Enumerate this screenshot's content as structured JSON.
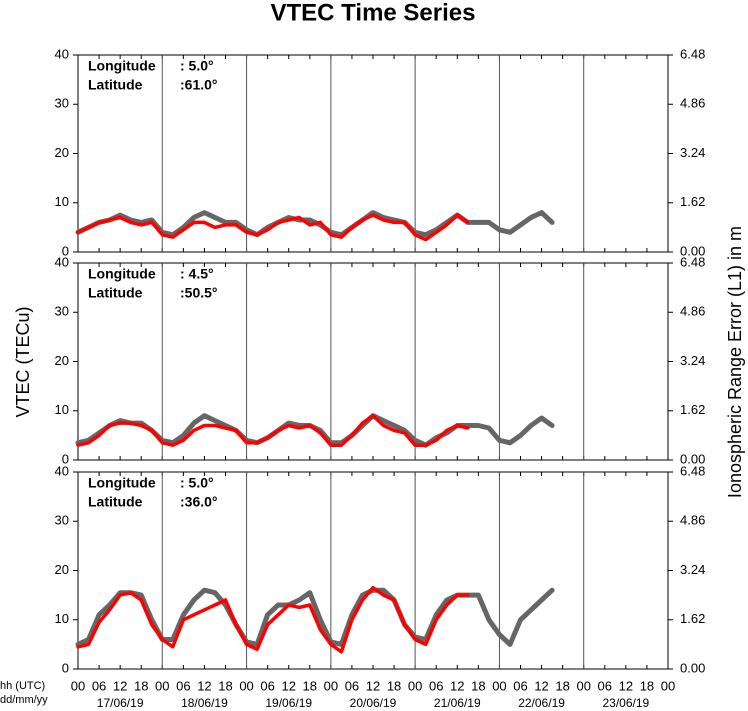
{
  "title": "VTEC Time Series",
  "y_label": "VTEC (TECu)",
  "y2_label": "Ionospheric Range Error (L1) in m",
  "x_label": "hh (UTC)",
  "date_label": "dd/mm/yy",
  "days": [
    "17/06/19",
    "18/06/19",
    "19/06/19",
    "20/06/19",
    "21/06/19",
    "22/06/19",
    "23/06/19"
  ],
  "chart_data": [
    {
      "type": "line",
      "longitude_label": "Longitude",
      "longitude": ":  5.0°",
      "latitude_label": "Latitude",
      "latitude": ":61.0°",
      "xlim": [
        0,
        168
      ],
      "ylim": [
        0,
        40
      ],
      "y2lim": [
        0,
        6.48
      ],
      "yticks": [
        0,
        10,
        20,
        30,
        40
      ],
      "y2ticks": [
        {
          "value": 0,
          "label": "0.00"
        },
        1.62,
        3.24,
        4.86,
        6.48
      ],
      "xticks": [
        {
          "value": 0,
          "label": "00"
        },
        {
          "value": 6,
          "label": "06"
        },
        {
          "value": 12,
          "label": "12"
        },
        {
          "value": 18,
          "label": "18"
        },
        {
          "value": 24,
          "label": "00"
        },
        {
          "value": 30,
          "label": "06"
        },
        {
          "value": 36,
          "label": "12"
        },
        {
          "value": 42,
          "label": "18"
        },
        {
          "value": 48,
          "label": "00"
        },
        {
          "value": 54,
          "label": "06"
        },
        {
          "value": 60,
          "label": "12"
        },
        {
          "value": 66,
          "label": "18"
        },
        {
          "value": 72,
          "label": "00"
        },
        {
          "value": 78,
          "label": "06"
        },
        {
          "value": 84,
          "label": "12"
        },
        {
          "value": 90,
          "label": "18"
        },
        {
          "value": 96,
          "label": "00"
        },
        {
          "value": 102,
          "label": "06"
        },
        {
          "value": 108,
          "label": "12"
        },
        {
          "value": 114,
          "label": "18"
        },
        {
          "value": 120,
          "label": "00"
        },
        {
          "value": 126,
          "label": "06"
        },
        {
          "value": 132,
          "label": "12"
        },
        {
          "value": 138,
          "label": "18"
        },
        {
          "value": 144,
          "label": "00"
        },
        {
          "value": 150,
          "label": "06"
        },
        {
          "value": 156,
          "label": "12"
        },
        {
          "value": 162,
          "label": "18"
        },
        {
          "value": 168,
          "label": "00"
        }
      ],
      "x": [
        0,
        3,
        6,
        9,
        12,
        15,
        18,
        21,
        24,
        27,
        30,
        33,
        36,
        39,
        42,
        45,
        48,
        51,
        54,
        57,
        60,
        63,
        66,
        69,
        72,
        75,
        78,
        81,
        84,
        87,
        90,
        93,
        96,
        99,
        102,
        105,
        108,
        111,
        114,
        117,
        120,
        123,
        126,
        129,
        132,
        135
      ],
      "series": [
        {
          "color": "#666666",
          "values": [
            4,
            5,
            6,
            6.5,
            7.5,
            6.5,
            6,
            6.5,
            4,
            3.5,
            5,
            7,
            8,
            7,
            6,
            6,
            4.5,
            3.5,
            5,
            6,
            7,
            6.5,
            6.5,
            5.5,
            4,
            3.5,
            5,
            6.5,
            8,
            7,
            6.5,
            6,
            4,
            3.5,
            4.5,
            6,
            7.5,
            6,
            6,
            6,
            4.5,
            4,
            5.5,
            7,
            8,
            6
          ]
        },
        {
          "color": "#ff0000",
          "values": [
            4,
            5,
            6,
            6.5,
            7,
            6,
            5.5,
            6,
            3.5,
            3,
            4.5,
            6,
            6,
            5,
            5.5,
            5.5,
            4,
            3.5,
            4.5,
            6,
            6.5,
            7,
            5.5,
            6,
            3.5,
            3,
            5,
            6.5,
            7.5,
            6.5,
            6,
            6,
            3.5,
            2.5,
            4,
            5.5,
            7.5,
            6,
            null,
            null,
            null,
            null,
            null,
            null,
            null,
            null
          ]
        }
      ]
    },
    {
      "type": "line",
      "longitude_label": "Longitude",
      "longitude": ":  4.5°",
      "latitude_label": "Latitude",
      "latitude": ":50.5°",
      "xlim": [
        0,
        168
      ],
      "ylim": [
        0,
        40
      ],
      "y2lim": [
        0,
        6.48
      ],
      "yticks": [
        0,
        10,
        20,
        30,
        40
      ],
      "y2ticks": [
        {
          "value": 0,
          "label": "0.00"
        },
        1.62,
        3.24,
        4.86,
        6.48
      ],
      "xticks": [
        {
          "value": 0,
          "label": "00"
        },
        {
          "value": 6,
          "label": "06"
        },
        {
          "value": 12,
          "label": "12"
        },
        {
          "value": 18,
          "label": "18"
        },
        {
          "value": 24,
          "label": "00"
        },
        {
          "value": 30,
          "label": "06"
        },
        {
          "value": 36,
          "label": "12"
        },
        {
          "value": 42,
          "label": "18"
        },
        {
          "value": 48,
          "label": "00"
        },
        {
          "value": 54,
          "label": "06"
        },
        {
          "value": 60,
          "label": "12"
        },
        {
          "value": 66,
          "label": "18"
        },
        {
          "value": 72,
          "label": "00"
        },
        {
          "value": 78,
          "label": "06"
        },
        {
          "value": 84,
          "label": "12"
        },
        {
          "value": 90,
          "label": "18"
        },
        {
          "value": 96,
          "label": "00"
        },
        {
          "value": 102,
          "label": "06"
        },
        {
          "value": 108,
          "label": "12"
        },
        {
          "value": 114,
          "label": "18"
        },
        {
          "value": 120,
          "label": "00"
        },
        {
          "value": 126,
          "label": "06"
        },
        {
          "value": 132,
          "label": "12"
        },
        {
          "value": 138,
          "label": "18"
        },
        {
          "value": 144,
          "label": "00"
        },
        {
          "value": 150,
          "label": "06"
        },
        {
          "value": 156,
          "label": "12"
        },
        {
          "value": 162,
          "label": "18"
        },
        {
          "value": 168,
          "label": "00"
        }
      ],
      "x": [
        0,
        3,
        6,
        9,
        12,
        15,
        18,
        21,
        24,
        27,
        30,
        33,
        36,
        39,
        42,
        45,
        48,
        51,
        54,
        57,
        60,
        63,
        66,
        69,
        72,
        75,
        78,
        81,
        84,
        87,
        90,
        93,
        96,
        99,
        102,
        105,
        108,
        111,
        114,
        117,
        120,
        123,
        126,
        129,
        132,
        135
      ],
      "series": [
        {
          "color": "#666666",
          "values": [
            3.5,
            4,
            5.5,
            7,
            8,
            7.5,
            7.5,
            6,
            4,
            3.5,
            5,
            7.5,
            9,
            8,
            7,
            6,
            4,
            3.5,
            4.5,
            6,
            7.5,
            7,
            7,
            6,
            3.5,
            3.5,
            5,
            7,
            9,
            8,
            7,
            6,
            4,
            3,
            4.5,
            5.5,
            7,
            7,
            7,
            6.5,
            4,
            3.5,
            5,
            7,
            8.5,
            7
          ]
        },
        {
          "color": "#ff0000",
          "values": [
            3,
            3.5,
            5,
            7,
            7.5,
            7.5,
            7,
            6,
            3.5,
            3,
            4,
            6,
            7,
            7,
            6.5,
            6,
            3.5,
            3.5,
            4.5,
            6,
            7,
            6.5,
            7,
            5.5,
            3,
            3,
            5,
            7.5,
            9,
            7,
            6,
            5.5,
            3,
            3,
            4,
            6,
            7,
            6.5,
            null,
            null,
            null,
            null,
            null,
            null,
            null,
            null
          ]
        }
      ]
    },
    {
      "type": "line",
      "longitude_label": "Longitude",
      "longitude": ":  5.0°",
      "latitude_label": "Latitude",
      "latitude": ":36.0°",
      "xlim": [
        0,
        168
      ],
      "ylim": [
        0,
        40
      ],
      "y2lim": [
        0,
        6.48
      ],
      "yticks": [
        0,
        10,
        20,
        30,
        40
      ],
      "y2ticks": [
        {
          "value": 0,
          "label": "0.00"
        },
        1.62,
        3.24,
        4.86,
        6.48
      ],
      "xticks": [
        {
          "value": 0,
          "label": "00"
        },
        {
          "value": 6,
          "label": "06"
        },
        {
          "value": 12,
          "label": "12"
        },
        {
          "value": 18,
          "label": "18"
        },
        {
          "value": 24,
          "label": "00"
        },
        {
          "value": 30,
          "label": "06"
        },
        {
          "value": 36,
          "label": "12"
        },
        {
          "value": 42,
          "label": "18"
        },
        {
          "value": 48,
          "label": "00"
        },
        {
          "value": 54,
          "label": "06"
        },
        {
          "value": 60,
          "label": "12"
        },
        {
          "value": 66,
          "label": "18"
        },
        {
          "value": 72,
          "label": "00"
        },
        {
          "value": 78,
          "label": "06"
        },
        {
          "value": 84,
          "label": "12"
        },
        {
          "value": 90,
          "label": "18"
        },
        {
          "value": 96,
          "label": "00"
        },
        {
          "value": 102,
          "label": "06"
        },
        {
          "value": 108,
          "label": "12"
        },
        {
          "value": 114,
          "label": "18"
        },
        {
          "value": 120,
          "label": "00"
        },
        {
          "value": 126,
          "label": "06"
        },
        {
          "value": 132,
          "label": "12"
        },
        {
          "value": 138,
          "label": "18"
        },
        {
          "value": 144,
          "label": "00"
        },
        {
          "value": 150,
          "label": "06"
        },
        {
          "value": 156,
          "label": "12"
        },
        {
          "value": 162,
          "label": "18"
        },
        {
          "value": 168,
          "label": "00"
        }
      ],
      "x": [
        0,
        3,
        6,
        9,
        12,
        15,
        18,
        21,
        24,
        27,
        30,
        33,
        36,
        39,
        42,
        45,
        48,
        51,
        54,
        57,
        60,
        63,
        66,
        69,
        72,
        75,
        78,
        81,
        84,
        87,
        90,
        93,
        96,
        99,
        102,
        105,
        108,
        111,
        114,
        117,
        120,
        123,
        126,
        129,
        132,
        135
      ],
      "series": [
        {
          "color": "#666666",
          "values": [
            5,
            6,
            11,
            13,
            15.5,
            15.5,
            15,
            10,
            6,
            6,
            11,
            14,
            16,
            15.5,
            13,
            9,
            5.5,
            5,
            11,
            13,
            13,
            14,
            15.5,
            10,
            5.5,
            5,
            11,
            15,
            16,
            16,
            14,
            9,
            6.5,
            6,
            11,
            14,
            15,
            15,
            15,
            10,
            7,
            5,
            10,
            12,
            14,
            16
          ]
        },
        {
          "color": "#ff0000",
          "values": [
            4.5,
            5,
            9.5,
            12,
            15,
            15.5,
            14,
            9,
            6,
            4.5,
            10,
            11,
            12,
            13,
            14,
            9,
            5,
            4,
            9,
            11,
            13,
            12.5,
            13,
            8,
            5,
            3.5,
            10,
            14,
            16.5,
            15,
            14,
            9,
            6,
            5,
            10,
            13,
            15,
            15,
            null,
            null,
            null,
            null,
            null,
            null,
            null,
            null
          ]
        }
      ]
    }
  ]
}
